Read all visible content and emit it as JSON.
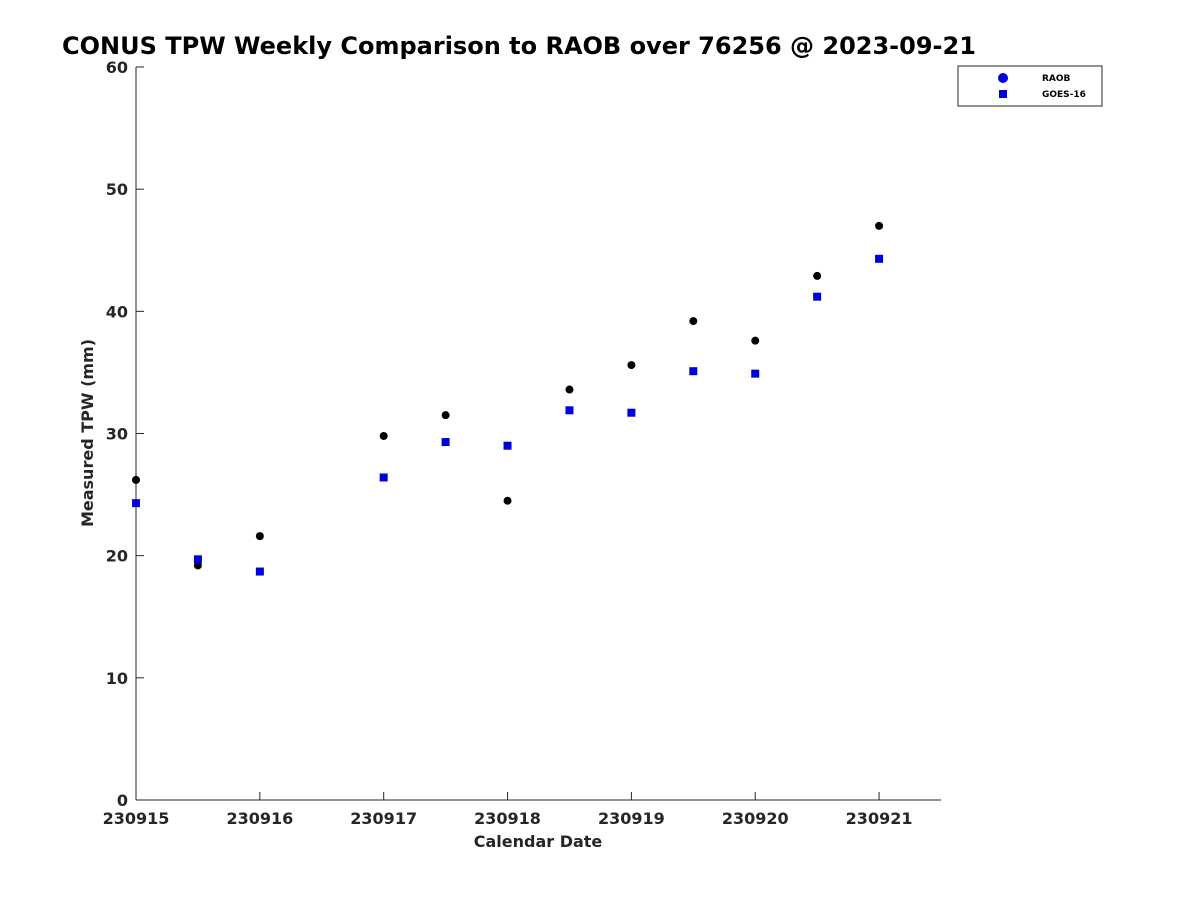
{
  "chart_data": {
    "type": "scatter",
    "title": "CONUS TPW Weekly Comparison to RAOB over 76256 @ 2023-09-21",
    "xlabel": "Calendar Date",
    "ylabel": "Measured TPW (mm)",
    "xlim": [
      0,
      6.5
    ],
    "ylim": [
      0,
      60
    ],
    "x_tick_values": [
      0,
      1,
      2,
      3,
      4,
      5,
      6
    ],
    "x_tick_labels": [
      "230915",
      "230916",
      "230917",
      "230918",
      "230919",
      "230920",
      "230921"
    ],
    "y_ticks": [
      0,
      10,
      20,
      30,
      40,
      50,
      60
    ],
    "grid": false,
    "legend_position": "top-right",
    "series": [
      {
        "name": "RAOB",
        "marker": "circle",
        "color": "#000000",
        "x": [
          0,
          0.5,
          1,
          2,
          2.5,
          3,
          3.5,
          4,
          4.5,
          5,
          5.5,
          6
        ],
        "values": [
          26.2,
          19.2,
          21.6,
          29.8,
          31.5,
          24.5,
          33.6,
          35.6,
          39.2,
          37.6,
          42.9,
          47.0
        ]
      },
      {
        "name": "GOES-16",
        "marker": "square",
        "color": "#0000dd",
        "x": [
          0,
          0.5,
          1,
          2,
          2.5,
          3,
          3.5,
          4,
          4.5,
          5,
          5.5,
          6
        ],
        "values": [
          24.3,
          19.7,
          18.7,
          26.4,
          29.3,
          29.0,
          31.9,
          31.7,
          35.1,
          34.9,
          41.2,
          44.3
        ]
      }
    ]
  }
}
